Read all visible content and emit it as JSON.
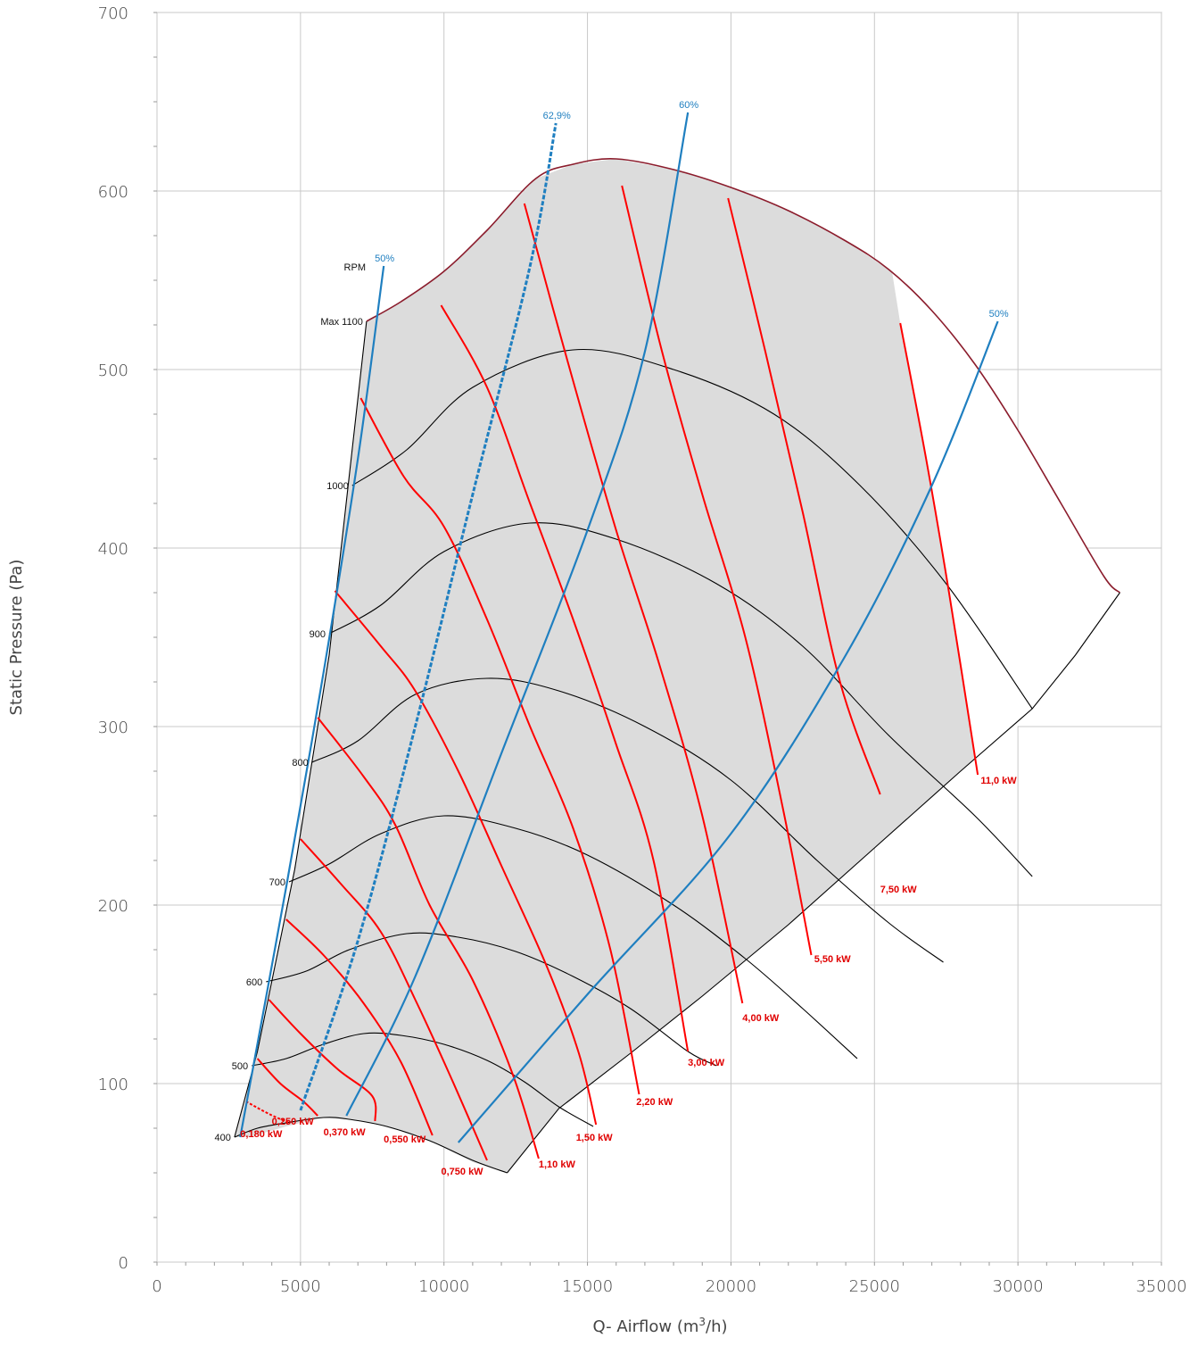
{
  "chart_data": {
    "type": "line",
    "xlabel": "Q- Airflow (m",
    "xlabel_sup": "3",
    "xlabel_tail": "/h)",
    "ylabel": "Static Pressure (Pa)",
    "xlim": [
      0,
      35000
    ],
    "ylim": [
      0,
      700
    ],
    "x_ticks": [
      "0",
      "5000",
      "10000",
      "15000",
      "20000",
      "25000",
      "30000",
      "35000"
    ],
    "y_ticks": [
      "0",
      "100",
      "200",
      "300",
      "400",
      "500",
      "600",
      "700"
    ],
    "grid": true,
    "colors": {
      "rpm": "#000000",
      "power": "#ff0000",
      "efficiency": "#1f7fc0",
      "area": "#dcdcdc",
      "envelope": "#8b1c2c"
    },
    "rpm_header": "RPM",
    "envelope": [
      [
        7300,
        527
      ],
      [
        8500,
        538
      ],
      [
        10000,
        555
      ],
      [
        11500,
        578
      ],
      [
        13200,
        607
      ],
      [
        14500,
        615
      ],
      [
        16000,
        618
      ],
      [
        18000,
        612
      ],
      [
        20000,
        602
      ],
      [
        22000,
        589
      ],
      [
        24000,
        572
      ],
      [
        25500,
        556
      ],
      [
        27000,
        533
      ],
      [
        28500,
        503
      ],
      [
        30000,
        466
      ],
      [
        31500,
        425
      ],
      [
        33000,
        384
      ],
      [
        33550,
        375
      ],
      [
        32000,
        340
      ],
      [
        30500,
        310
      ],
      [
        28000,
        275
      ],
      [
        25000,
        232
      ],
      [
        22000,
        189
      ],
      [
        19000,
        149
      ],
      [
        16500,
        117
      ],
      [
        14000,
        86
      ],
      [
        12200,
        50
      ],
      [
        11000,
        56
      ],
      [
        9500,
        68
      ],
      [
        8000,
        76
      ],
      [
        6700,
        80
      ],
      [
        5800,
        81
      ],
      [
        4500,
        76
      ],
      [
        3200,
        70
      ],
      [
        2700,
        70
      ],
      [
        3500,
        118
      ],
      [
        4800,
        220
      ],
      [
        6000,
        340
      ],
      [
        7300,
        527
      ]
    ],
    "rpm_series": [
      {
        "name": "400",
        "points": [
          [
            2700,
            70
          ],
          [
            3500,
            75
          ],
          [
            4500,
            78
          ],
          [
            5800,
            81
          ],
          [
            6700,
            80
          ],
          [
            8000,
            76
          ],
          [
            9500,
            68
          ],
          [
            11000,
            57
          ],
          [
            12200,
            50
          ]
        ]
      },
      {
        "name": "500",
        "points": [
          [
            3300,
            110
          ],
          [
            4500,
            114
          ],
          [
            5800,
            122
          ],
          [
            7200,
            128
          ],
          [
            8500,
            127
          ],
          [
            10000,
            122
          ],
          [
            11500,
            113
          ],
          [
            12800,
            101
          ],
          [
            14000,
            87
          ],
          [
            15200,
            76
          ]
        ]
      },
      {
        "name": "600",
        "points": [
          [
            3800,
            157
          ],
          [
            5200,
            163
          ],
          [
            6700,
            175
          ],
          [
            8700,
            184
          ],
          [
            10500,
            182
          ],
          [
            12500,
            174
          ],
          [
            14500,
            160
          ],
          [
            16500,
            142
          ],
          [
            18500,
            118
          ],
          [
            19500,
            110
          ]
        ]
      },
      {
        "name": "700",
        "points": [
          [
            4600,
            213
          ],
          [
            6000,
            223
          ],
          [
            7800,
            240
          ],
          [
            10000,
            250
          ],
          [
            12500,
            243
          ],
          [
            15000,
            228
          ],
          [
            18000,
            200
          ],
          [
            20500,
            170
          ],
          [
            22500,
            142
          ],
          [
            24400,
            114
          ]
        ]
      },
      {
        "name": "800",
        "points": [
          [
            5400,
            280
          ],
          [
            7000,
            292
          ],
          [
            9000,
            318
          ],
          [
            11500,
            327
          ],
          [
            14000,
            320
          ],
          [
            17000,
            300
          ],
          [
            20000,
            270
          ],
          [
            23000,
            225
          ],
          [
            25500,
            190
          ],
          [
            27400,
            168
          ]
        ]
      },
      {
        "name": "900",
        "points": [
          [
            6000,
            352
          ],
          [
            7800,
            368
          ],
          [
            10000,
            398
          ],
          [
            13000,
            414
          ],
          [
            16000,
            405
          ],
          [
            19500,
            380
          ],
          [
            22500,
            345
          ],
          [
            25500,
            295
          ],
          [
            28500,
            250
          ],
          [
            30500,
            216
          ]
        ]
      },
      {
        "name": "1000",
        "points": [
          [
            6800,
            435
          ],
          [
            8700,
            455
          ],
          [
            11000,
            490
          ],
          [
            14500,
            511
          ],
          [
            18000,
            500
          ],
          [
            21500,
            475
          ],
          [
            24500,
            435
          ],
          [
            27500,
            380
          ],
          [
            30500,
            310
          ]
        ]
      },
      {
        "name": "Max 1100",
        "points": [
          [
            7300,
            527
          ],
          [
            8500,
            538
          ],
          [
            10000,
            555
          ],
          [
            11500,
            578
          ],
          [
            13200,
            607
          ],
          [
            14500,
            615
          ],
          [
            16000,
            618
          ],
          [
            18000,
            612
          ],
          [
            20000,
            602
          ],
          [
            22000,
            589
          ],
          [
            24000,
            572
          ],
          [
            25500,
            556
          ],
          [
            27000,
            533
          ],
          [
            28500,
            503
          ],
          [
            30000,
            466
          ],
          [
            31500,
            425
          ],
          [
            33000,
            384
          ],
          [
            33550,
            375
          ]
        ]
      }
    ],
    "power_series": [
      {
        "name": "0,180 kW",
        "dashed": true,
        "points": [
          [
            3100,
            90
          ],
          [
            3900,
            83
          ],
          [
            4600,
            78
          ]
        ]
      },
      {
        "name": "0,250 kW",
        "points": [
          [
            3500,
            114
          ],
          [
            4300,
            100
          ],
          [
            5100,
            90
          ],
          [
            5600,
            82
          ]
        ]
      },
      {
        "name": "0,370 kW",
        "points": [
          [
            3900,
            147
          ],
          [
            5000,
            128
          ],
          [
            6300,
            108
          ],
          [
            7500,
            93
          ],
          [
            7600,
            79
          ]
        ]
      },
      {
        "name": "0,550 kW",
        "points": [
          [
            4500,
            192
          ],
          [
            5800,
            172
          ],
          [
            7200,
            145
          ],
          [
            8500,
            112
          ],
          [
            9600,
            71
          ]
        ]
      },
      {
        "name": "0,750 kW",
        "points": [
          [
            5000,
            237
          ],
          [
            6400,
            212
          ],
          [
            7800,
            185
          ],
          [
            9000,
            147
          ],
          [
            10200,
            105
          ],
          [
            11500,
            57
          ]
        ]
      },
      {
        "name": "1,10 kW",
        "points": [
          [
            5600,
            305
          ],
          [
            7200,
            272
          ],
          [
            8300,
            245
          ],
          [
            9500,
            200
          ],
          [
            11000,
            158
          ],
          [
            12400,
            105
          ],
          [
            13300,
            58
          ]
        ]
      },
      {
        "name": "1,50 kW",
        "points": [
          [
            6200,
            376
          ],
          [
            7800,
            345
          ],
          [
            9000,
            320
          ],
          [
            10500,
            275
          ],
          [
            12000,
            222
          ],
          [
            13600,
            165
          ],
          [
            14700,
            117
          ],
          [
            15300,
            77
          ]
        ]
      },
      {
        "name": "2,20 kW",
        "points": [
          [
            7100,
            484
          ],
          [
            8600,
            440
          ],
          [
            10000,
            412
          ],
          [
            11500,
            360
          ],
          [
            13000,
            300
          ],
          [
            14500,
            243
          ],
          [
            15800,
            175
          ],
          [
            16800,
            94
          ]
        ]
      },
      {
        "name": "3,00 kW",
        "points": [
          [
            9900,
            536
          ],
          [
            11500,
            490
          ],
          [
            13000,
            425
          ],
          [
            14500,
            360
          ],
          [
            16000,
            290
          ],
          [
            17300,
            225
          ],
          [
            18500,
            118
          ]
        ]
      },
      {
        "name": "4,00 kW",
        "points": [
          [
            12800,
            593
          ],
          [
            14300,
            505
          ],
          [
            16000,
            410
          ],
          [
            17500,
            335
          ],
          [
            19000,
            250
          ],
          [
            20400,
            145
          ]
        ]
      },
      {
        "name": "5,50 kW",
        "points": [
          [
            16200,
            603
          ],
          [
            17600,
            510
          ],
          [
            19000,
            430
          ],
          [
            20500,
            350
          ],
          [
            21800,
            255
          ],
          [
            22800,
            172
          ]
        ]
      },
      {
        "name": "7,50 kW",
        "points": [
          [
            19900,
            596
          ],
          [
            21200,
            510
          ],
          [
            22500,
            420
          ],
          [
            23800,
            325
          ],
          [
            25200,
            262
          ]
        ]
      },
      {
        "name": "11,0 kW",
        "points": [
          [
            25900,
            526
          ],
          [
            26800,
            450
          ],
          [
            27600,
            375
          ],
          [
            28600,
            273
          ]
        ]
      }
    ],
    "efficiency_series": [
      {
        "name": "50%",
        "dashed": false,
        "points": [
          [
            2900,
            70
          ],
          [
            4500,
            210
          ],
          [
            5800,
            330
          ],
          [
            7000,
            450
          ],
          [
            7900,
            558
          ]
        ]
      },
      {
        "name": "62,9%",
        "dashed": true,
        "points": [
          [
            5000,
            85
          ],
          [
            7000,
            180
          ],
          [
            9000,
            300
          ],
          [
            11000,
            430
          ],
          [
            13000,
            558
          ],
          [
            13900,
            638
          ]
        ]
      },
      {
        "name": "60%",
        "dashed": false,
        "points": [
          [
            6600,
            82
          ],
          [
            9000,
            160
          ],
          [
            12000,
            285
          ],
          [
            15000,
            410
          ],
          [
            17000,
            510
          ],
          [
            18500,
            644
          ]
        ]
      },
      {
        "name": "50%",
        "dashed": false,
        "points": [
          [
            10500,
            67
          ],
          [
            15000,
            150
          ],
          [
            20000,
            240
          ],
          [
            24000,
            340
          ],
          [
            27000,
            435
          ],
          [
            29300,
            527
          ]
        ]
      }
    ],
    "power_labels": [
      {
        "text": "0,180 kW",
        "at": [
          2900,
          70
        ]
      },
      {
        "text": "0,250 kW",
        "at": [
          4000,
          77
        ]
      },
      {
        "text": "0,370 kW",
        "at": [
          5800,
          71
        ]
      },
      {
        "text": "0,550 kW",
        "at": [
          7900,
          67
        ]
      },
      {
        "text": "0,750 kW",
        "at": [
          9900,
          49
        ]
      },
      {
        "text": "1,10 kW",
        "at": [
          13300,
          53
        ]
      },
      {
        "text": "1,50 kW",
        "at": [
          14600,
          68
        ]
      },
      {
        "text": "2,20 kW",
        "at": [
          16700,
          88
        ]
      },
      {
        "text": "3,00 kW",
        "at": [
          18500,
          110
        ]
      },
      {
        "text": "4,00 kW",
        "at": [
          20400,
          135
        ]
      },
      {
        "text": "5,50 kW",
        "at": [
          22900,
          168
        ]
      },
      {
        "text": "7,50 kW",
        "at": [
          25200,
          207
        ]
      },
      {
        "text": "11,0 kW",
        "at": [
          28700,
          268
        ]
      }
    ]
  }
}
